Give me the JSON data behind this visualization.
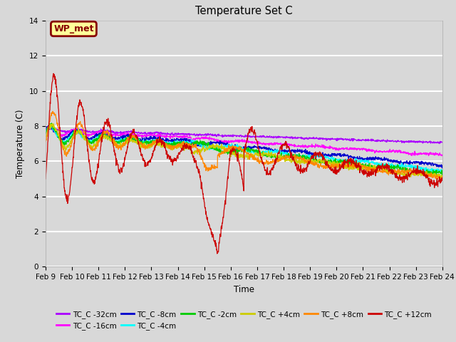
{
  "title": "Temperature Set C",
  "xlabel": "Time",
  "ylabel": "Temperature (C)",
  "ylim": [
    0,
    14
  ],
  "background_color": "#d8d8d8",
  "plot_bg_color": "#d8d8d8",
  "grid_color": "#ffffff",
  "series": [
    {
      "label": "TC_C -32cm",
      "color": "#aa00ff"
    },
    {
      "label": "TC_C -16cm",
      "color": "#ff00ff"
    },
    {
      "label": "TC_C -8cm",
      "color": "#0000cc"
    },
    {
      "label": "TC_C -4cm",
      "color": "#00ffff"
    },
    {
      "label": "TC_C -2cm",
      "color": "#00cc00"
    },
    {
      "label": "TC_C +4cm",
      "color": "#cccc00"
    },
    {
      "label": "TC_C +8cm",
      "color": "#ff8800"
    },
    {
      "label": "TC_C +12cm",
      "color": "#cc0000"
    }
  ],
  "annotation_label": "WP_met",
  "annotation_box_color": "#ffff99",
  "annotation_border_color": "#880000",
  "x_tick_labels": [
    "Feb 9",
    "Feb 10",
    "Feb 11",
    "Feb 12",
    "Feb 13",
    "Feb 14",
    "Feb 15",
    "Feb 16",
    "Feb 17",
    "Feb 18",
    "Feb 19",
    "Feb 20",
    "Feb 21",
    "Feb 22",
    "Feb 23",
    "Feb 24"
  ],
  "x_tick_positions": [
    0,
    1,
    2,
    3,
    4,
    5,
    6,
    7,
    8,
    9,
    10,
    11,
    12,
    13,
    14,
    15
  ]
}
